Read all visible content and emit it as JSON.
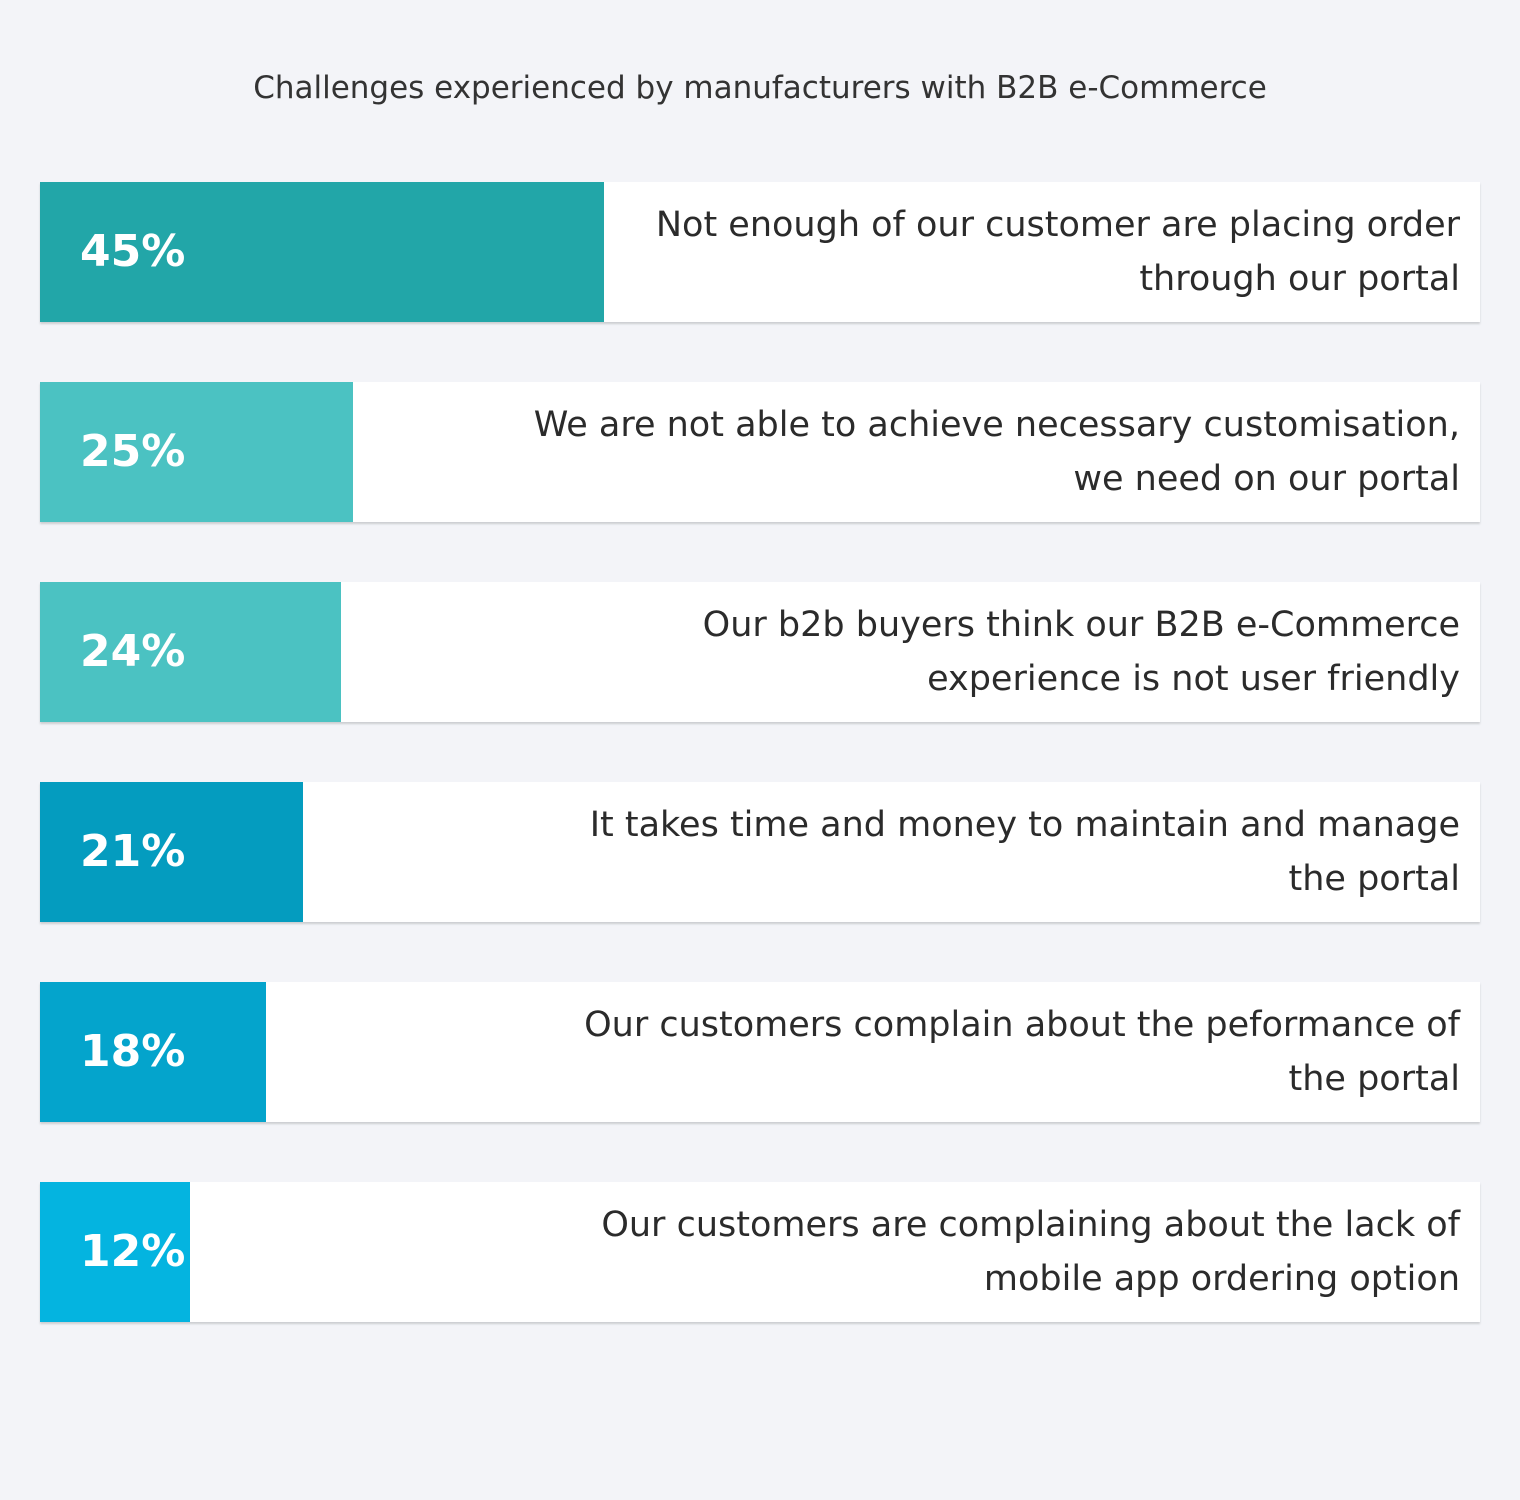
{
  "chart_data": {
    "type": "bar",
    "orientation": "horizontal",
    "title": "Challenges experienced by manufacturers with B2B e-Commerce",
    "xlim": [
      0,
      100
    ],
    "grid": false,
    "categories": [
      "Not enough of our customer are placing order through our portal",
      "We are not able to achieve necessary customisation, we need on our portal",
      "Our b2b buyers think our B2B e-Commerce experience is not user friendly",
      "It takes time and money to maintain and manage the portal",
      "Our customers complain about the peformance of the portal",
      "Our customers are complaining about the lack of mobile app ordering option"
    ],
    "values": [
      45,
      25,
      24,
      21,
      18,
      12
    ],
    "labels": [
      "45%",
      "25%",
      "24%",
      "21%",
      "18%",
      "12%"
    ],
    "label_lines": [
      [
        "Not enough of our customer are placing order",
        "through our portal"
      ],
      [
        "We are not able to achieve necessary customisation,",
        "we need on our portal"
      ],
      [
        "Our b2b buyers think our B2B e-Commerce",
        "experience is not user friendly"
      ],
      [
        "It takes time and money to maintain and manage",
        "the portal"
      ],
      [
        "Our customers complain about the peformance of",
        "the portal"
      ],
      [
        "Our customers are complaining about the lack of",
        "mobile app ordering option"
      ]
    ],
    "colors": [
      "#22a6a8",
      "#4bc2c2",
      "#4bc2c2",
      "#049cbf",
      "#04a4cc",
      "#04b4e0"
    ]
  }
}
